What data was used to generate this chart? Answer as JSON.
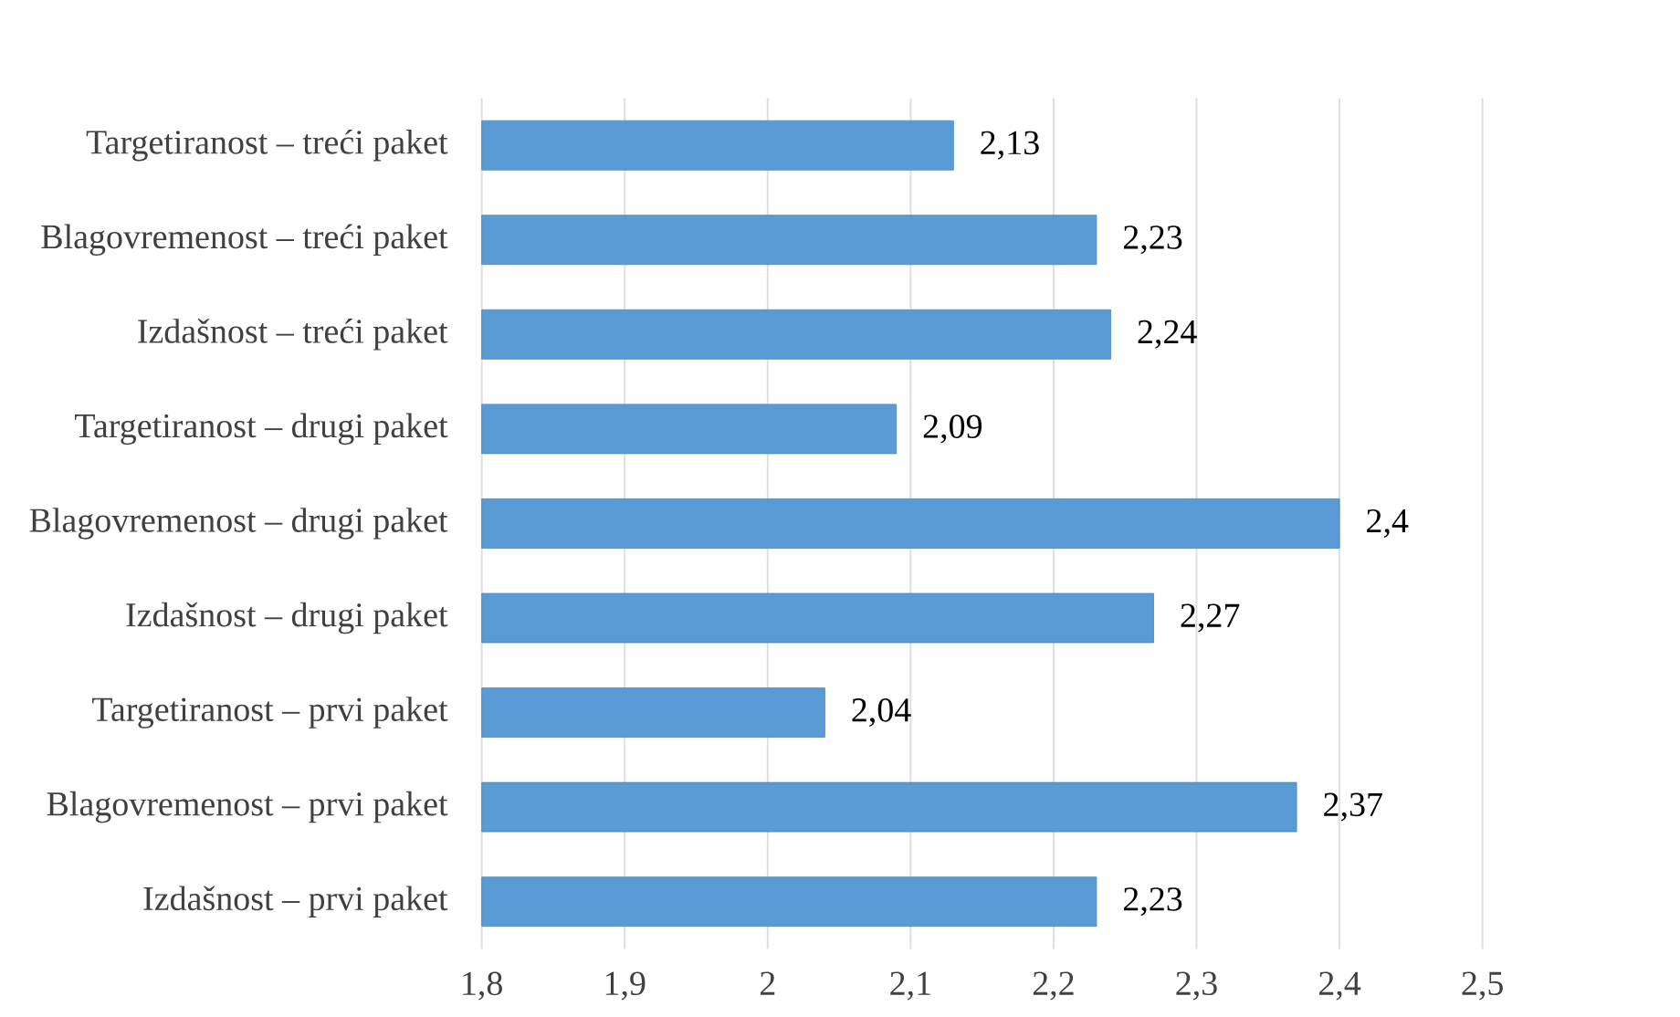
{
  "chart_data": {
    "type": "bar",
    "orientation": "horizontal",
    "categories": [
      "Targetiranost – treći paket",
      "Blagovremenost – treći paket",
      "Izdašnost – treći paket",
      "Targetiranost – drugi paket",
      "Blagovremenost – drugi paket",
      "Izdašnost – drugi paket",
      "Targetiranost – prvi paket",
      "Blagovremenost – prvi paket",
      "Izdašnost – prvi paket"
    ],
    "values": [
      2.13,
      2.23,
      2.24,
      2.09,
      2.4,
      2.27,
      2.04,
      2.37,
      2.23
    ],
    "value_labels": [
      "2,13",
      "2,23",
      "2,24",
      "2,09",
      "2,4",
      "2,27",
      "2,04",
      "2,37",
      "2,23"
    ],
    "color": "#5b9bd5",
    "xlim": [
      1.8,
      2.5
    ],
    "xticks": [
      {
        "value": 1.8,
        "label": "1,8"
      },
      {
        "value": 1.9,
        "label": "1,9"
      },
      2,
      {
        "value": 2.1,
        "label": "2,1"
      },
      {
        "value": 2.2,
        "label": "2,2"
      },
      {
        "value": 2.3,
        "label": "2,3"
      },
      {
        "value": 2.4,
        "label": "2,4"
      },
      {
        "value": 2.5,
        "label": "2,5"
      }
    ],
    "grid": "x"
  }
}
